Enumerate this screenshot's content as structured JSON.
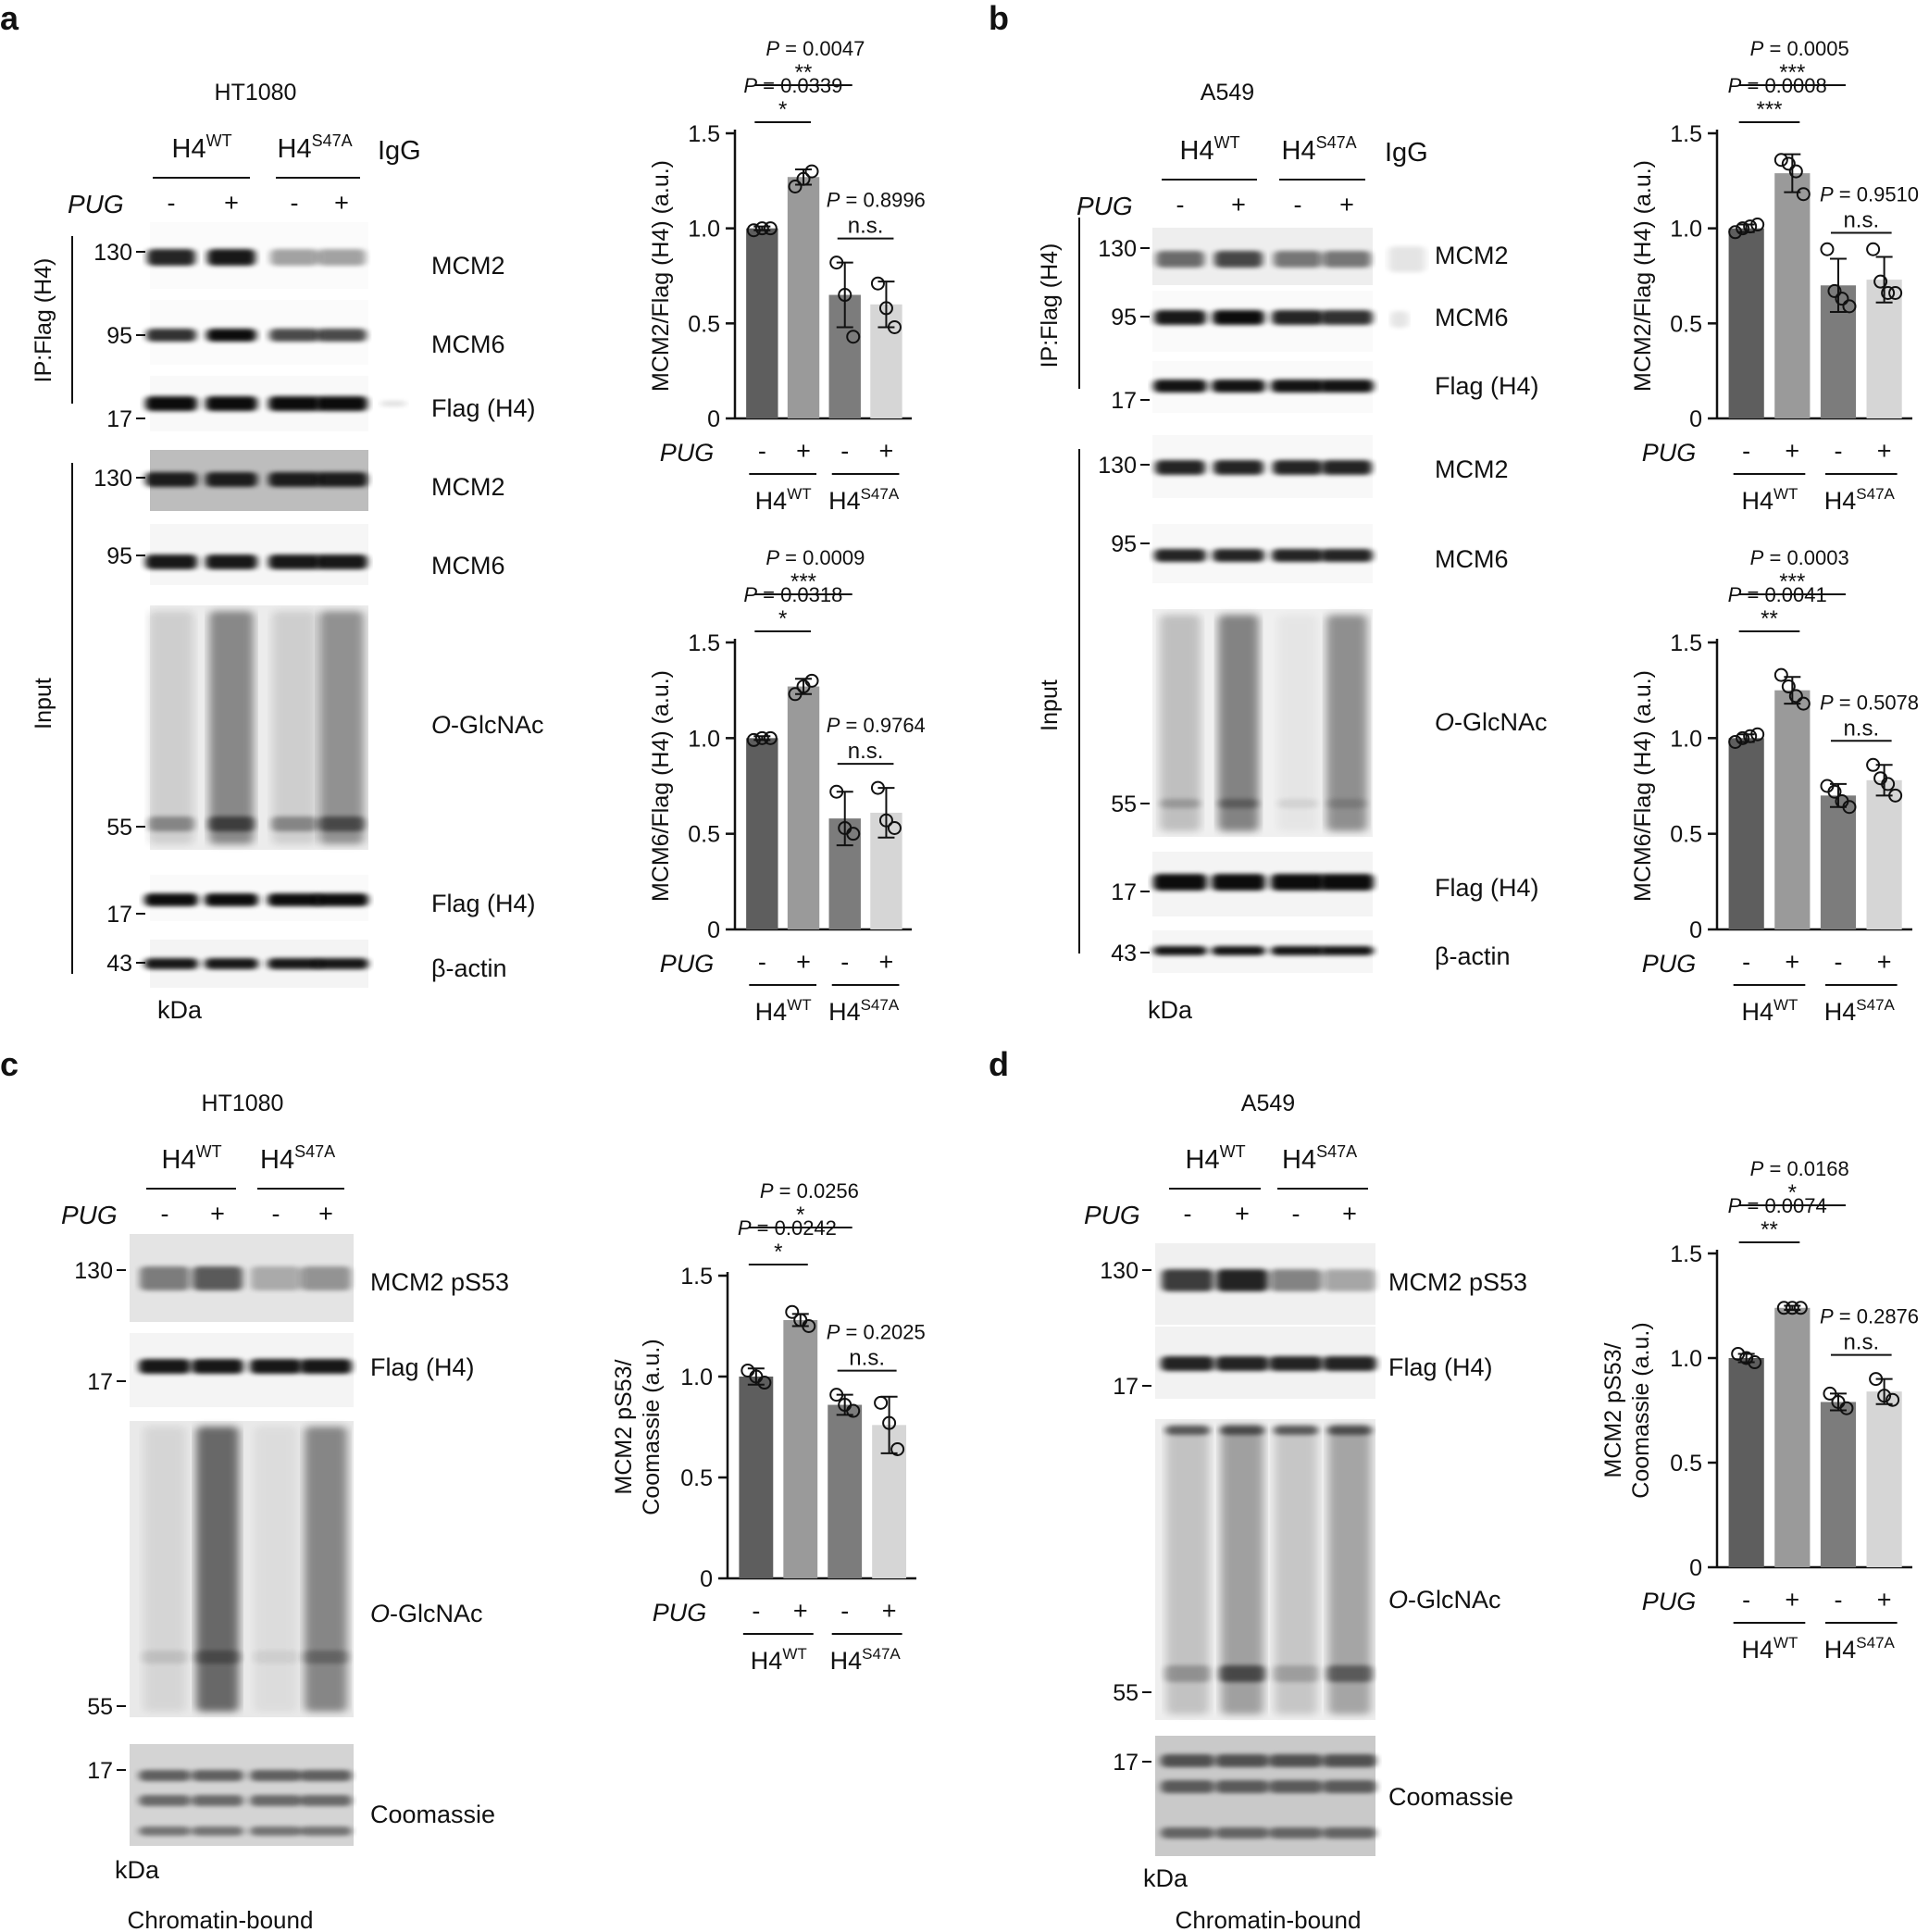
{
  "panel_a": {
    "letter": "a",
    "cell_line": "HT1080",
    "lane_groups": {
      "wt_main": "H4",
      "wt_sup": "WT",
      "mut_main": "H4",
      "mut_sup": "S47A",
      "igg": "IgG"
    },
    "treatment": {
      "label": "PUG",
      "minus": "-",
      "plus": "+"
    },
    "sections": {
      "ip": "IP:Flag (H4)",
      "input": "Input"
    },
    "markers": {
      "m130a": "130",
      "m95a": "95",
      "m17a": "17",
      "m130b": "130",
      "m95b": "95",
      "m55": "55",
      "m17b": "17",
      "m43": "43"
    },
    "blot_labels": {
      "ip_mcm2": "MCM2",
      "ip_mcm6": "MCM6",
      "ip_flag": "Flag (H4)",
      "in_mcm2": "MCM2",
      "in_mcm6": "MCM6",
      "in_oglc_prefix": "O",
      "in_oglc_rest": "-GlcNAc",
      "in_flag": "Flag (H4)",
      "in_actin": "β-actin"
    },
    "unit": "kDa"
  },
  "panel_b": {
    "letter": "b",
    "cell_line": "A549",
    "lane_groups": {
      "wt_main": "H4",
      "wt_sup": "WT",
      "mut_main": "H4",
      "mut_sup": "S47A",
      "igg": "IgG"
    },
    "treatment": {
      "label": "PUG",
      "minus": "-",
      "plus": "+"
    },
    "sections": {
      "ip": "IP:Flag (H4)",
      "input": "Input"
    },
    "markers": {
      "m130a": "130",
      "m95a": "95",
      "m17a": "17",
      "m130b": "130",
      "m95b": "95",
      "m55": "55",
      "m17b": "17",
      "m43": "43"
    },
    "blot_labels": {
      "ip_mcm2": "MCM2",
      "ip_mcm6": "MCM6",
      "ip_flag": "Flag (H4)",
      "in_mcm2": "MCM2",
      "in_mcm6": "MCM6",
      "in_oglc_prefix": "O",
      "in_oglc_rest": "-GlcNAc",
      "in_flag": "Flag (H4)",
      "in_actin": "β-actin"
    },
    "unit": "kDa"
  },
  "panel_c": {
    "letter": "c",
    "cell_line": "HT1080",
    "lane_groups": {
      "wt_main": "H4",
      "wt_sup": "WT",
      "mut_main": "H4",
      "mut_sup": "S47A"
    },
    "treatment": {
      "label": "PUG",
      "minus": "-",
      "plus": "+"
    },
    "markers": {
      "m130": "130",
      "m17a": "17",
      "m55": "55",
      "m17b": "17"
    },
    "blot_labels": {
      "mcm2ps53": "MCM2 pS53",
      "flag": "Flag (H4)",
      "oglc_prefix": "O",
      "oglc_rest": "-GlcNAc",
      "coomassie": "Coomassie"
    },
    "unit": "kDa",
    "fraction": "Chromatin-bound"
  },
  "panel_d": {
    "letter": "d",
    "cell_line": "A549",
    "lane_groups": {
      "wt_main": "H4",
      "wt_sup": "WT",
      "mut_main": "H4",
      "mut_sup": "S47A"
    },
    "treatment": {
      "label": "PUG",
      "minus": "-",
      "plus": "+"
    },
    "markers": {
      "m130": "130",
      "m17a": "17",
      "m55": "55",
      "m17b": "17"
    },
    "blot_labels": {
      "mcm2ps53": "MCM2 pS53",
      "flag": "Flag (H4)",
      "oglc_prefix": "O",
      "oglc_rest": "-GlcNAc",
      "coomassie": "Coomassie"
    },
    "unit": "kDa",
    "fraction": "Chromatin-bound"
  },
  "chart_data": [
    {
      "id": "chart_a1",
      "type": "bar",
      "ylabel": "MCM2/Flag (H4) (a.u.)",
      "ylim": [
        0,
        1.5
      ],
      "yticks": [
        "0",
        "0.5",
        "1.0",
        "1.5"
      ],
      "yticks_values": [
        0,
        0.5,
        1.0,
        1.5
      ],
      "treatment_label": "PUG",
      "treatment_values": [
        "-",
        "+",
        "-",
        "+"
      ],
      "groups": [
        {
          "main": "H4",
          "sup": "WT"
        },
        {
          "main": "H4",
          "sup": "S47A"
        }
      ],
      "values": [
        1.0,
        1.27,
        0.65,
        0.6
      ],
      "errors": [
        0.01,
        0.04,
        0.17,
        0.12
      ],
      "points": [
        [
          0.99,
          1.0,
          1.0
        ],
        [
          1.22,
          1.26,
          1.3
        ],
        [
          0.82,
          0.65,
          0.43
        ],
        [
          0.71,
          0.58,
          0.48
        ]
      ],
      "colors": [
        "#5e5e5e",
        "#9a9a9a",
        "#7c7c7c",
        "#d6d6d6"
      ],
      "comparisons": [
        {
          "from": 0,
          "to": 1,
          "p": "0.0339",
          "sig": "*"
        },
        {
          "from": 0,
          "to": 2,
          "p": "0.0047",
          "sig": "**"
        },
        {
          "from": 2,
          "to": 3,
          "p": "0.8996",
          "sig": "n.s."
        }
      ]
    },
    {
      "id": "chart_a2",
      "type": "bar",
      "ylabel": "MCM6/Flag (H4) (a.u.)",
      "ylim": [
        0,
        1.5
      ],
      "yticks": [
        "0",
        "0.5",
        "1.0",
        "1.5"
      ],
      "yticks_values": [
        0,
        0.5,
        1.0,
        1.5
      ],
      "treatment_label": "PUG",
      "treatment_values": [
        "-",
        "+",
        "-",
        "+"
      ],
      "groups": [
        {
          "main": "H4",
          "sup": "WT"
        },
        {
          "main": "H4",
          "sup": "S47A"
        }
      ],
      "values": [
        1.0,
        1.27,
        0.58,
        0.61
      ],
      "errors": [
        0.01,
        0.04,
        0.14,
        0.13
      ],
      "points": [
        [
          0.99,
          1.0,
          1.0
        ],
        [
          1.23,
          1.27,
          1.3
        ],
        [
          0.72,
          0.53,
          0.5
        ],
        [
          0.74,
          0.57,
          0.53
        ]
      ],
      "colors": [
        "#5e5e5e",
        "#9a9a9a",
        "#7c7c7c",
        "#d6d6d6"
      ],
      "comparisons": [
        {
          "from": 0,
          "to": 1,
          "p": "0.0318",
          "sig": "*"
        },
        {
          "from": 0,
          "to": 2,
          "p": "0.0009",
          "sig": "***"
        },
        {
          "from": 2,
          "to": 3,
          "p": "0.9764",
          "sig": "n.s."
        }
      ]
    },
    {
      "id": "chart_b1",
      "type": "bar",
      "ylabel": "MCM2/Flag (H4) (a.u.)",
      "ylim": [
        0,
        1.5
      ],
      "yticks": [
        "0",
        "0.5",
        "1.0",
        "1.5"
      ],
      "yticks_values": [
        0,
        0.5,
        1.0,
        1.5
      ],
      "treatment_label": "PUG",
      "treatment_values": [
        "-",
        "+",
        "-",
        "+"
      ],
      "groups": [
        {
          "main": "H4",
          "sup": "WT"
        },
        {
          "main": "H4",
          "sup": "S47A"
        }
      ],
      "values": [
        1.0,
        1.29,
        0.7,
        0.73
      ],
      "errors": [
        0.02,
        0.1,
        0.14,
        0.12
      ],
      "points": [
        [
          0.98,
          1.0,
          1.01,
          1.02
        ],
        [
          1.36,
          1.34,
          1.3,
          1.18
        ],
        [
          0.89,
          0.67,
          0.63,
          0.59
        ],
        [
          0.89,
          0.72,
          0.66,
          0.66
        ]
      ],
      "colors": [
        "#5e5e5e",
        "#9a9a9a",
        "#7c7c7c",
        "#d6d6d6"
      ],
      "comparisons": [
        {
          "from": 0,
          "to": 1,
          "p": "0.0008",
          "sig": "***"
        },
        {
          "from": 0,
          "to": 2,
          "p": "0.0005",
          "sig": "***"
        },
        {
          "from": 2,
          "to": 3,
          "p": "0.9510",
          "sig": "n.s."
        }
      ]
    },
    {
      "id": "chart_b2",
      "type": "bar",
      "ylabel": "MCM6/Flag (H4) (a.u.)",
      "ylim": [
        0,
        1.5
      ],
      "yticks": [
        "0",
        "0.5",
        "1.0",
        "1.5"
      ],
      "yticks_values": [
        0,
        0.5,
        1.0,
        1.5
      ],
      "treatment_label": "PUG",
      "treatment_values": [
        "-",
        "+",
        "-",
        "+"
      ],
      "groups": [
        {
          "main": "H4",
          "sup": "WT"
        },
        {
          "main": "H4",
          "sup": "S47A"
        }
      ],
      "values": [
        1.0,
        1.25,
        0.7,
        0.78
      ],
      "errors": [
        0.02,
        0.07,
        0.06,
        0.08
      ],
      "points": [
        [
          0.98,
          1.0,
          1.01,
          1.02
        ],
        [
          1.33,
          1.27,
          1.22,
          1.18
        ],
        [
          0.75,
          0.72,
          0.67,
          0.64
        ],
        [
          0.86,
          0.79,
          0.76,
          0.7
        ]
      ],
      "colors": [
        "#5e5e5e",
        "#9a9a9a",
        "#7c7c7c",
        "#d6d6d6"
      ],
      "comparisons": [
        {
          "from": 0,
          "to": 1,
          "p": "0.0041",
          "sig": "**"
        },
        {
          "from": 0,
          "to": 2,
          "p": "0.0003",
          "sig": "***"
        },
        {
          "from": 2,
          "to": 3,
          "p": "0.5078",
          "sig": "n.s."
        }
      ]
    },
    {
      "id": "chart_c",
      "type": "bar",
      "ylabel_lines": [
        "MCM2 pS53/",
        "Coomassie (a.u.)"
      ],
      "ylim": [
        0,
        1.5
      ],
      "yticks": [
        "0",
        "0.5",
        "1.0",
        "1.5"
      ],
      "yticks_values": [
        0,
        0.5,
        1.0,
        1.5
      ],
      "treatment_label": "PUG",
      "treatment_values": [
        "-",
        "+",
        "-",
        "+"
      ],
      "groups": [
        {
          "main": "H4",
          "sup": "WT"
        },
        {
          "main": "H4",
          "sup": "S47A"
        }
      ],
      "values": [
        1.0,
        1.28,
        0.86,
        0.76
      ],
      "errors": [
        0.04,
        0.03,
        0.05,
        0.14
      ],
      "points": [
        [
          1.03,
          1.0,
          0.97
        ],
        [
          1.32,
          1.28,
          1.25
        ],
        [
          0.91,
          0.86,
          0.83
        ],
        [
          0.87,
          0.77,
          0.64
        ]
      ],
      "colors": [
        "#5e5e5e",
        "#9a9a9a",
        "#7c7c7c",
        "#d6d6d6"
      ],
      "comparisons": [
        {
          "from": 0,
          "to": 1,
          "p": "0.0242",
          "sig": "*"
        },
        {
          "from": 0,
          "to": 2,
          "p": "0.0256",
          "sig": "*"
        },
        {
          "from": 2,
          "to": 3,
          "p": "0.2025",
          "sig": "n.s."
        }
      ]
    },
    {
      "id": "chart_d",
      "type": "bar",
      "ylabel_lines": [
        "MCM2 pS53/",
        "Coomassie (a.u.)"
      ],
      "ylim": [
        0,
        1.5
      ],
      "yticks": [
        "0",
        "0.5",
        "1.0",
        "1.5"
      ],
      "yticks_values": [
        0,
        0.5,
        1.0,
        1.5
      ],
      "treatment_label": "PUG",
      "treatment_values": [
        "-",
        "+",
        "-",
        "+"
      ],
      "groups": [
        {
          "main": "H4",
          "sup": "WT"
        },
        {
          "main": "H4",
          "sup": "S47A"
        }
      ],
      "values": [
        1.0,
        1.24,
        0.79,
        0.84
      ],
      "errors": [
        0.02,
        0.01,
        0.04,
        0.06
      ],
      "points": [
        [
          1.02,
          1.0,
          0.98
        ],
        [
          1.24,
          1.24,
          1.24
        ],
        [
          0.83,
          0.79,
          0.76
        ],
        [
          0.9,
          0.82,
          0.8
        ]
      ],
      "colors": [
        "#5e5e5e",
        "#9a9a9a",
        "#7c7c7c",
        "#d6d6d6"
      ],
      "comparisons": [
        {
          "from": 0,
          "to": 1,
          "p": "0.0074",
          "sig": "**"
        },
        {
          "from": 0,
          "to": 2,
          "p": "0.0168",
          "sig": "*"
        },
        {
          "from": 2,
          "to": 3,
          "p": "0.2876",
          "sig": "n.s."
        }
      ]
    }
  ]
}
